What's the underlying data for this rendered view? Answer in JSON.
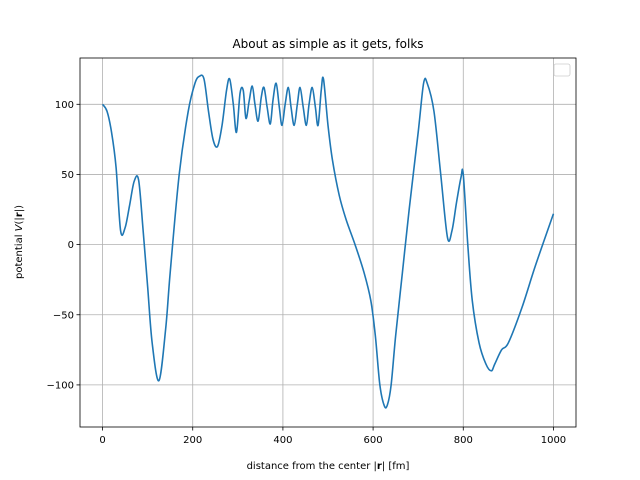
{
  "chart_data": {
    "type": "line",
    "title": "About as simple as it gets, folks",
    "xlabel": "distance from the center |r| [fm]",
    "ylabel": "potential V(|r|)",
    "xlim": [
      -50,
      1050
    ],
    "ylim": [
      -130,
      133
    ],
    "xticks": [
      0,
      200,
      400,
      600,
      800,
      1000
    ],
    "yticks": [
      -100,
      -50,
      0,
      50,
      100
    ],
    "grid": true,
    "legend": {
      "location": "upper right",
      "entries": []
    },
    "colors": {
      "line": "#1f77b4",
      "grid": "#b0b0b0",
      "axes": "#000000"
    },
    "series": [
      {
        "x": [
          0,
          10,
          20,
          30,
          40,
          50,
          60,
          70,
          80,
          90,
          100,
          110,
          125,
          140,
          150,
          170,
          190,
          205,
          215,
          225,
          235,
          245,
          255,
          265,
          275,
          282,
          290,
          297,
          305,
          312,
          318,
          325,
          332,
          338,
          345,
          352,
          358,
          365,
          372,
          378,
          385,
          392,
          398,
          405,
          412,
          418,
          425,
          432,
          438,
          445,
          452,
          458,
          465,
          472,
          478,
          485,
          490,
          500,
          510,
          525,
          540,
          560,
          580,
          595,
          605,
          615,
          625,
          632,
          640,
          650,
          665,
          680,
          700,
          712,
          720,
          735,
          750,
          765,
          775,
          785,
          795,
          800,
          810,
          820,
          835,
          850,
          862,
          870,
          885,
          900,
          930,
          960,
          1000
        ],
        "y": [
          100,
          95,
          80,
          55,
          10,
          12,
          28,
          45,
          46,
          10,
          -30,
          -70,
          -97,
          -60,
          -20,
          50,
          95,
          115,
          120,
          118,
          95,
          75,
          70,
          85,
          110,
          118,
          100,
          80,
          108,
          110,
          90,
          102,
          113,
          100,
          88,
          105,
          112,
          98,
          86,
          103,
          115,
          98,
          85,
          100,
          112,
          98,
          85,
          100,
          112,
          98,
          85,
          100,
          112,
          98,
          85,
          110,
          118,
          85,
          60,
          35,
          18,
          0,
          -20,
          -40,
          -65,
          -100,
          -115,
          -114,
          -100,
          -65,
          -20,
          25,
          80,
          115,
          115,
          95,
          50,
          5,
          10,
          30,
          48,
          50,
          0,
          -40,
          -70,
          -85,
          -90,
          -85,
          -75,
          -70,
          -45,
          -15,
          22
        ]
      }
    ]
  }
}
